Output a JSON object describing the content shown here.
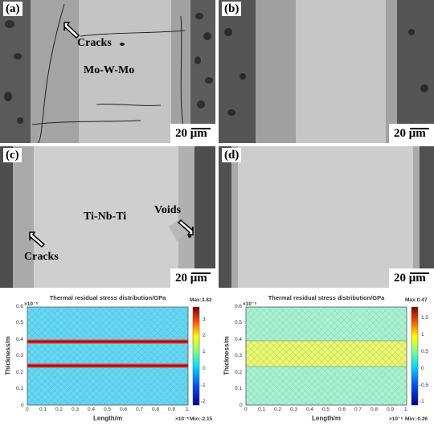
{
  "panels": [
    {
      "label": "(a)",
      "scale": "20 μm",
      "annotations": [
        "Cracks",
        "Mo-W-Mo"
      ]
    },
    {
      "label": "(b)",
      "scale": "20 μm"
    },
    {
      "label": "(c)",
      "scale": "20 μm",
      "annotations": [
        "Voids",
        "Ti-Nb-Ti",
        "Cracks"
      ]
    },
    {
      "label": "(d)",
      "scale": "20 μm"
    }
  ],
  "simulations": [
    {
      "title": "Thermal residual stress distribution/GPa",
      "max_label": "Max:3.82",
      "min_label": "Min:-2.15",
      "colorbar_ticks": [
        "3",
        "2",
        "1",
        "0",
        "-1",
        "-2"
      ],
      "y_ticks": [
        "0.6",
        "0.5",
        "0.4",
        "0.3",
        "0.2",
        "0.1",
        "0"
      ],
      "x_ticks": [
        "0",
        "0.1",
        "0.2",
        "0.3",
        "0.4",
        "0.5",
        "0.6",
        "0.7",
        "0.8",
        "0.9",
        "1"
      ],
      "x_label": "Length/m",
      "y_label": "Thickness/m",
      "x_exp": "×10⁻⁵",
      "y_exp": "×10⁻⁵"
    },
    {
      "title": "Thermal residual stress distribution/GPa",
      "max_label": "Max:0.47",
      "min_label": "Min:-0.26",
      "colorbar_ticks": [
        "1.5",
        "1",
        "0.5",
        "0",
        "-0.5",
        "-1"
      ],
      "y_ticks": [
        "0.6",
        "0.5",
        "0.4",
        "0.3",
        "0.2",
        "0.1",
        "0"
      ],
      "x_ticks": [
        "0",
        "0.1",
        "0.2",
        "0.3",
        "0.4",
        "0.5",
        "0.6",
        "0.7",
        "0.8",
        "0.9",
        "1"
      ],
      "x_label": "Length/m",
      "y_label": "Thickness/m",
      "x_exp": "×10⁻⁵",
      "y_exp": "×10⁻⁵"
    }
  ]
}
